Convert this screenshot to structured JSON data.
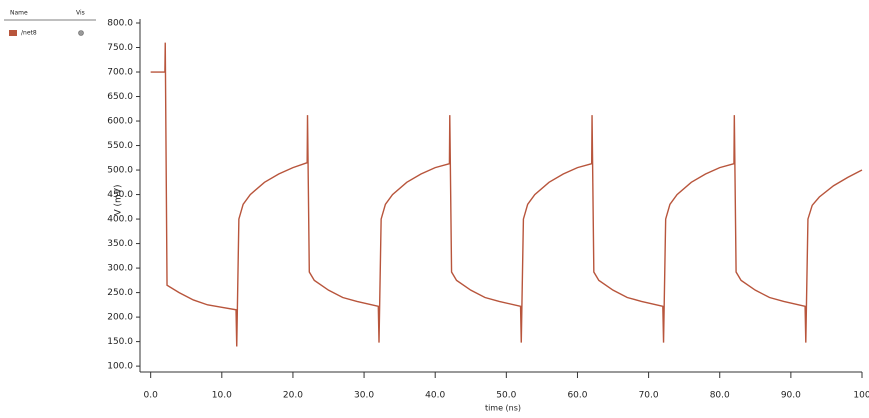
{
  "legend_header": {
    "name": "Name",
    "vis": "Vis"
  },
  "chart_data": {
    "type": "line",
    "xlabel": "time (ns)",
    "ylabel": "V (mV)",
    "xlim": [
      -1.5,
      100
    ],
    "ylim": [
      88,
      800
    ],
    "xticks": [
      {
        "value": 0,
        "label": "0.0"
      },
      {
        "value": 10,
        "label": "10.0"
      },
      {
        "value": 20,
        "label": "20.0"
      },
      {
        "value": 30,
        "label": "30.0"
      },
      {
        "value": 40,
        "label": "40.0"
      },
      {
        "value": 50,
        "label": "50.0"
      },
      {
        "value": 60,
        "label": "60.0"
      },
      {
        "value": 70,
        "label": "70.0"
      },
      {
        "value": 80,
        "label": "80.0"
      },
      {
        "value": 90,
        "label": "90.0"
      },
      100
    ],
    "yticks": [
      {
        "value": 100,
        "label": "100.0"
      },
      {
        "value": 150,
        "label": "150.0"
      },
      {
        "value": 200,
        "label": "200.0"
      },
      {
        "value": 250,
        "label": "250.0"
      },
      {
        "value": 300,
        "label": "300.0"
      },
      {
        "value": 350,
        "label": "350.0"
      },
      {
        "value": 400,
        "label": "400.0"
      },
      {
        "value": 450,
        "label": "450.0"
      },
      {
        "value": 500,
        "label": "500.0"
      },
      {
        "value": 550,
        "label": "550.0"
      },
      {
        "value": 600,
        "label": "600.0"
      },
      {
        "value": 650,
        "label": "650.0"
      },
      {
        "value": 700,
        "label": "700.0"
      },
      {
        "value": 750,
        "label": "750.0"
      },
      {
        "value": 800,
        "label": "800.0"
      }
    ],
    "x": [
      0,
      2,
      2.05,
      2.3,
      4,
      6,
      8,
      10,
      12,
      12.1,
      12.4,
      13,
      14,
      16,
      18,
      20,
      22,
      22.05,
      22.3,
      23,
      25,
      27,
      29,
      32,
      32.1,
      32.4,
      33,
      34,
      36,
      38,
      40,
      42,
      42.05,
      42.3,
      43,
      45,
      47,
      49,
      52,
      52.1,
      52.4,
      53,
      54,
      56,
      58,
      60,
      62,
      62.05,
      62.3,
      63,
      65,
      67,
      69,
      72,
      72.1,
      72.4,
      73,
      74,
      76,
      78,
      80,
      82,
      82.05,
      82.3,
      83,
      85,
      87,
      89,
      92,
      92.1,
      92.4,
      93,
      94,
      96,
      98,
      100
    ],
    "series": [
      {
        "name": "/net8",
        "color": "#b8553c",
        "values": [
          700,
          700,
          760,
          265,
          250,
          235,
          225,
          220,
          215,
          140,
          400,
          430,
          450,
          475,
          492,
          505,
          515,
          612,
          292,
          275,
          255,
          240,
          232,
          222,
          148,
          400,
          430,
          450,
          475,
          492,
          505,
          513,
          612,
          292,
          275,
          255,
          240,
          232,
          222,
          148,
          400,
          430,
          450,
          475,
          492,
          505,
          513,
          612,
          292,
          275,
          255,
          240,
          232,
          222,
          148,
          400,
          430,
          450,
          475,
          492,
          505,
          513,
          612,
          292,
          275,
          255,
          240,
          232,
          222,
          148,
          400,
          428,
          445,
          468,
          485,
          500
        ]
      }
    ]
  }
}
